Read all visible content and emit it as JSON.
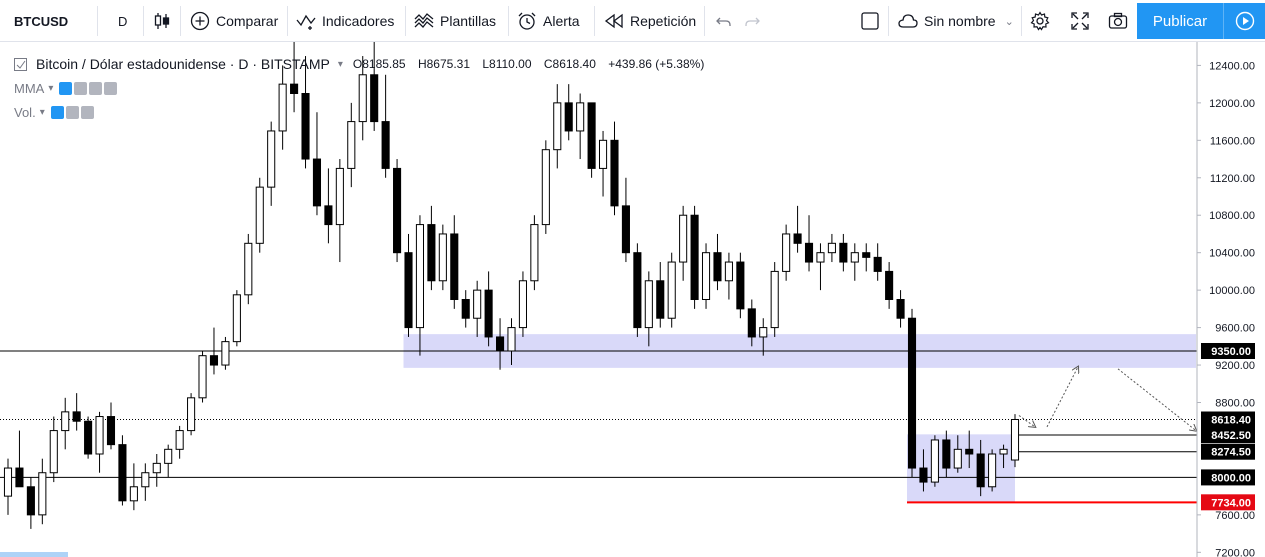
{
  "toolbar": {
    "symbol": "BTCUSD",
    "interval": "D",
    "compare_label": "Comparar",
    "indicators_label": "Indicadores",
    "templates_label": "Plantillas",
    "alert_label": "Alerta",
    "replay_label": "Repetición",
    "layout_name": "Sin nombre",
    "publish_label": "Publicar",
    "icons": [
      "candles-icon",
      "plus-circle-icon",
      "indicators-icon",
      "templates-icon",
      "alarm-clock-icon",
      "replay-icon",
      "undo-icon",
      "redo-icon",
      "square-icon",
      "cloud-icon",
      "gear-icon",
      "fullscreen-icon",
      "camera-icon",
      "play-icon"
    ]
  },
  "legend": {
    "title": "Bitcoin / Dólar estadounidense · D · BITSTAMP",
    "open": "O8185.85",
    "high": "H8675.31",
    "low": "L8110.00",
    "close": "C8618.40",
    "change": "+439.86 (+5.38%)",
    "indicators": [
      {
        "name": "MMA"
      },
      {
        "name": "Vol."
      }
    ]
  },
  "price_axis": {
    "ticks": [
      "12400.00",
      "12000.00",
      "11600.00",
      "11200.00",
      "10800.00",
      "10400.00",
      "10000.00",
      "9600.00",
      "9200.00",
      "8800.00",
      "7600.00",
      "7200.00"
    ],
    "tick_values": [
      12400,
      12000,
      11600,
      11200,
      10800,
      10400,
      10000,
      9600,
      9200,
      8800,
      7600,
      7200
    ],
    "tags": [
      {
        "label": "9350.00",
        "value": 9350,
        "bg": "#000000",
        "fg": "#ffffff"
      },
      {
        "label": "8618.40",
        "value": 8618.4,
        "bg": "#000000",
        "fg": "#ffffff"
      },
      {
        "label": "8452.50",
        "value": 8452.5,
        "bg": "#000000",
        "fg": "#ffffff"
      },
      {
        "label": "8274.50",
        "value": 8274.5,
        "bg": "#000000",
        "fg": "#ffffff"
      },
      {
        "label": "8000.00",
        "value": 8000,
        "bg": "#000000",
        "fg": "#ffffff"
      },
      {
        "label": "7734.00",
        "value": 7734,
        "bg": "#e50914",
        "fg": "#ffffff"
      }
    ]
  },
  "colors": {
    "zone_fill": "#9c9cf0",
    "candle": "#000000",
    "support_red": "#ff0000",
    "accent": "#2196f3"
  },
  "chart_data": {
    "type": "candlestick",
    "symbol": "BTCUSD",
    "ylim": [
      7150,
      12650
    ],
    "horizontal_lines": [
      9350,
      8000
    ],
    "dotted_line": 8618.4,
    "zones": [
      {
        "from_value": 9170,
        "to_value": 9530
      },
      {
        "from_value": 7734,
        "to_value": 8460
      }
    ],
    "candles": [
      [
        7800,
        8200,
        7600,
        8100
      ],
      [
        8100,
        8500,
        7900,
        7900
      ],
      [
        7900,
        8000,
        7450,
        7600
      ],
      [
        7600,
        8200,
        7500,
        8050
      ],
      [
        8050,
        8650,
        7950,
        8500
      ],
      [
        8500,
        8850,
        8300,
        8700
      ],
      [
        8700,
        8900,
        8500,
        8600
      ],
      [
        8600,
        8650,
        8200,
        8250
      ],
      [
        8250,
        8700,
        8050,
        8650
      ],
      [
        8650,
        8800,
        8300,
        8350
      ],
      [
        8350,
        8450,
        7700,
        7750
      ],
      [
        7750,
        8150,
        7650,
        7900
      ],
      [
        7900,
        8150,
        7750,
        8050
      ],
      [
        8050,
        8250,
        7900,
        8150
      ],
      [
        8150,
        8350,
        8000,
        8300
      ],
      [
        8300,
        8550,
        8200,
        8500
      ],
      [
        8500,
        8900,
        8450,
        8850
      ],
      [
        8850,
        9350,
        8800,
        9300
      ],
      [
        9300,
        9600,
        9100,
        9200
      ],
      [
        9200,
        9500,
        9150,
        9450
      ],
      [
        9450,
        10000,
        9400,
        9950
      ],
      [
        9950,
        10600,
        9850,
        10500
      ],
      [
        10500,
        11200,
        10400,
        11100
      ],
      [
        11100,
        11800,
        10900,
        11700
      ],
      [
        11700,
        12400,
        11500,
        12200
      ],
      [
        12200,
        12700,
        11900,
        12100
      ],
      [
        12100,
        12500,
        11300,
        11400
      ],
      [
        11400,
        11900,
        10800,
        10900
      ],
      [
        10900,
        11300,
        10500,
        10700
      ],
      [
        10700,
        11400,
        10300,
        11300
      ],
      [
        11300,
        12000,
        11100,
        11800
      ],
      [
        11800,
        12500,
        11600,
        12300
      ],
      [
        12300,
        12700,
        11700,
        11800
      ],
      [
        11800,
        12300,
        11200,
        11300
      ],
      [
        11300,
        11400,
        10300,
        10400
      ],
      [
        10400,
        10600,
        9500,
        9600
      ],
      [
        9600,
        10800,
        9300,
        10700
      ],
      [
        10700,
        10900,
        10000,
        10100
      ],
      [
        10100,
        10700,
        10000,
        10600
      ],
      [
        10600,
        10800,
        9800,
        9900
      ],
      [
        9900,
        10000,
        9600,
        9700
      ],
      [
        9700,
        10100,
        9500,
        10000
      ],
      [
        10000,
        10200,
        9400,
        9500
      ],
      [
        9500,
        9700,
        9150,
        9350
      ],
      [
        9350,
        9700,
        9200,
        9600
      ],
      [
        9600,
        10200,
        9500,
        10100
      ],
      [
        10100,
        10800,
        10000,
        10700
      ],
      [
        10700,
        11600,
        10600,
        11500
      ],
      [
        11500,
        12200,
        11300,
        12000
      ],
      [
        12000,
        12200,
        11600,
        11700
      ],
      [
        11700,
        12100,
        11400,
        12000
      ],
      [
        12000,
        12000,
        11200,
        11300
      ],
      [
        11300,
        11700,
        11000,
        11600
      ],
      [
        11600,
        11800,
        10800,
        10900
      ],
      [
        10900,
        11200,
        10300,
        10400
      ],
      [
        10400,
        10500,
        9500,
        9600
      ],
      [
        9600,
        10200,
        9400,
        10100
      ],
      [
        10100,
        10300,
        9600,
        9700
      ],
      [
        9700,
        10400,
        9600,
        10300
      ],
      [
        10300,
        10900,
        10100,
        10800
      ],
      [
        10800,
        10900,
        9800,
        9900
      ],
      [
        9900,
        10500,
        9800,
        10400
      ],
      [
        10400,
        10600,
        10000,
        10100
      ],
      [
        10100,
        10400,
        9900,
        10300
      ],
      [
        10300,
        10400,
        9700,
        9800
      ],
      [
        9800,
        9900,
        9400,
        9500
      ],
      [
        9500,
        9700,
        9300,
        9600
      ],
      [
        9600,
        10300,
        9500,
        10200
      ],
      [
        10200,
        10700,
        10100,
        10600
      ],
      [
        10600,
        10900,
        10400,
        10500
      ],
      [
        10500,
        10800,
        10200,
        10300
      ],
      [
        10300,
        10500,
        10000,
        10400
      ],
      [
        10400,
        10600,
        10300,
        10500
      ],
      [
        10500,
        10600,
        10200,
        10300
      ],
      [
        10300,
        10500,
        10100,
        10400
      ],
      [
        10400,
        10500,
        10200,
        10350
      ],
      [
        10350,
        10500,
        10100,
        10200
      ],
      [
        10200,
        10300,
        9800,
        9900
      ],
      [
        9900,
        10000,
        9600,
        9700
      ],
      [
        9700,
        9800,
        8000,
        8100
      ],
      [
        8100,
        8300,
        7850,
        7950
      ],
      [
        7950,
        8450,
        7900,
        8400
      ],
      [
        8400,
        8500,
        8000,
        8100
      ],
      [
        8100,
        8450,
        8050,
        8300
      ],
      [
        8300,
        8500,
        8100,
        8250
      ],
      [
        8250,
        8400,
        7800,
        7900
      ],
      [
        7900,
        8300,
        7850,
        8250
      ],
      [
        8250,
        8350,
        8100,
        8300
      ],
      [
        8185.85,
        8675.31,
        8110,
        8618.4
      ]
    ],
    "projection": [
      8618.4,
      8540,
      9180,
      8500
    ]
  }
}
